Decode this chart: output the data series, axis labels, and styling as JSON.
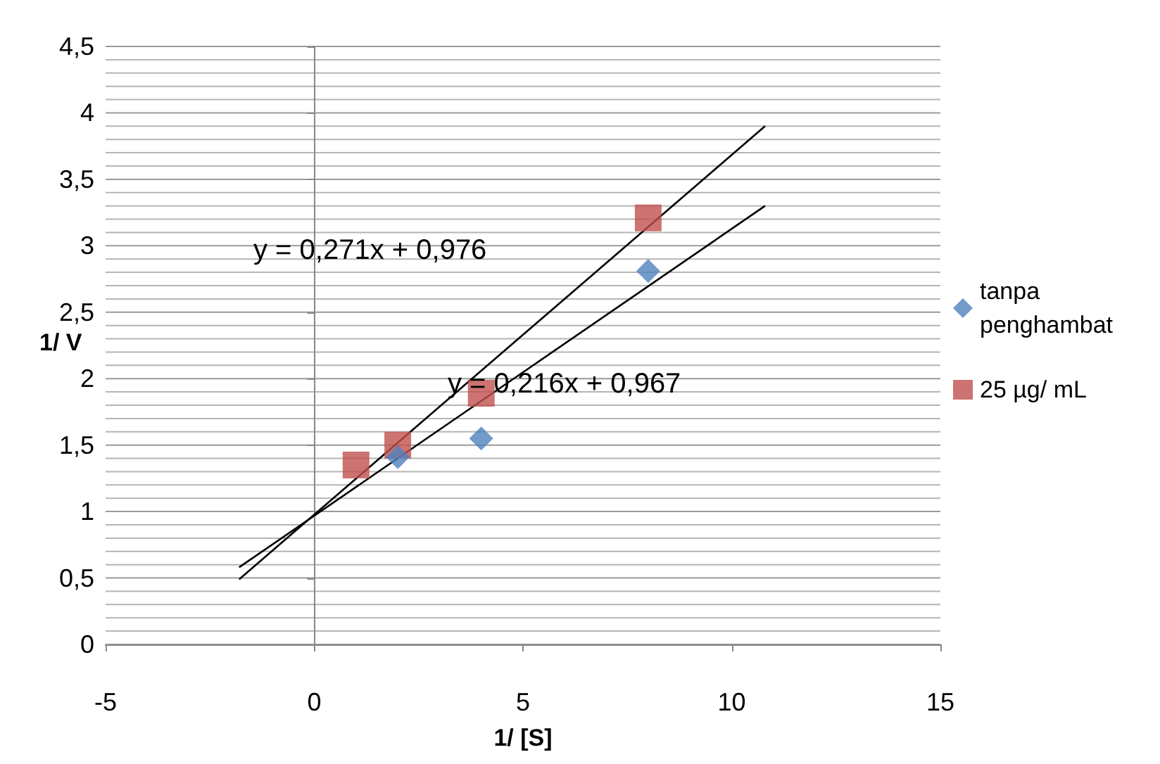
{
  "chart_data": {
    "type": "scatter",
    "xlabel": "1/ [S]",
    "ylabel": "1/ V",
    "xlim": [
      -5,
      15
    ],
    "xticks": [
      -5,
      0,
      5,
      10,
      15
    ],
    "ylim": [
      0,
      4.5
    ],
    "yticks": [
      0,
      {
        "value": 0.1,
        "label": null
      },
      {
        "value": 0.2,
        "label": null
      },
      {
        "value": 0.3,
        "label": null
      },
      {
        "value": 0.4,
        "label": null
      },
      {
        "value": 0.5,
        "label": "0,5"
      },
      {
        "value": 0.6,
        "label": null
      },
      {
        "value": 0.7,
        "label": null
      },
      {
        "value": 0.8,
        "label": null
      },
      {
        "value": 0.9,
        "label": null
      },
      1,
      {
        "value": 1.1,
        "label": null
      },
      {
        "value": 1.2,
        "label": null
      },
      {
        "value": 1.3,
        "label": null
      },
      {
        "value": 1.4,
        "label": null
      },
      {
        "value": 1.5,
        "label": "1,5"
      },
      {
        "value": 1.6,
        "label": null
      },
      {
        "value": 1.7,
        "label": null
      },
      {
        "value": 1.8,
        "label": null
      },
      {
        "value": 1.9,
        "label": null
      },
      2,
      {
        "value": 2.1,
        "label": null
      },
      {
        "value": 2.2,
        "label": null
      },
      {
        "value": 2.3,
        "label": null
      },
      {
        "value": 2.4,
        "label": null
      },
      {
        "value": 2.5,
        "label": "2,5"
      },
      {
        "value": 2.6,
        "label": null
      },
      {
        "value": 2.7,
        "label": null
      },
      {
        "value": 2.8,
        "label": null
      },
      {
        "value": 2.9,
        "label": null
      },
      3,
      {
        "value": 3.1,
        "label": null
      },
      {
        "value": 3.2,
        "label": null
      },
      {
        "value": 3.3,
        "label": null
      },
      {
        "value": 3.4,
        "label": null
      },
      {
        "value": 3.5,
        "label": "3,5"
      },
      {
        "value": 3.6,
        "label": null
      },
      {
        "value": 3.7,
        "label": null
      },
      {
        "value": 3.8,
        "label": null
      },
      {
        "value": 3.9,
        "label": null
      },
      4,
      {
        "value": 4.1,
        "label": null
      },
      {
        "value": 4.2,
        "label": null
      },
      {
        "value": 4.3,
        "label": null
      },
      {
        "value": 4.4,
        "label": null
      },
      {
        "value": 4.5,
        "label": "4,5"
      }
    ],
    "grid": "y",
    "legend": "right",
    "series": [
      {
        "name": "tanpa penghambat",
        "color": "#4f81bd",
        "marker": "diamond",
        "x": [
          2,
          4,
          8
        ],
        "values": [
          1.41,
          1.55,
          2.81
        ]
      },
      {
        "name": "25 µg/ mL",
        "color": "#c0504d",
        "marker": "square",
        "x": [
          1,
          2,
          4,
          8
        ],
        "values": [
          1.35,
          1.5,
          1.89,
          3.21
        ]
      },
      {
        "type": "line",
        "color": "#000000",
        "marker": "none",
        "x": [
          -1.8,
          10.8
        ],
        "values": [
          0.49,
          3.9
        ]
      },
      {
        "type": "line",
        "color": "#000000",
        "marker": "none",
        "x": [
          -1.8,
          10.8
        ],
        "values": [
          0.58,
          3.3
        ]
      }
    ],
    "annotations": [
      "y = 0,271x + 0,976",
      "y = 0,216x + 0,967"
    ]
  }
}
